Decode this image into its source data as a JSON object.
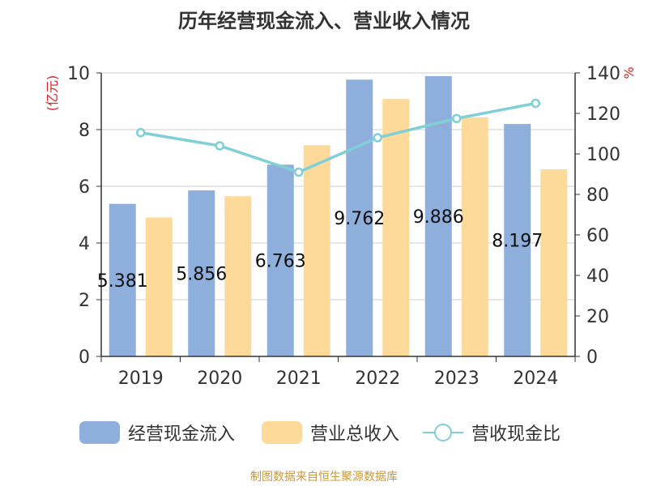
{
  "title": "历年经营现金流入、营业收入情况",
  "source": "制图数据来自恒生聚源数据库",
  "chart_data": {
    "type": "bar",
    "categories": [
      "2019",
      "2020",
      "2021",
      "2022",
      "2023",
      "2024"
    ],
    "y_left": {
      "label": "(亿元)",
      "min": 0,
      "max": 10,
      "ticks": [
        "0",
        "2",
        "4",
        "6",
        "8",
        "10"
      ]
    },
    "y_right": {
      "label": "%",
      "min": 0,
      "max": 140,
      "ticks": [
        "0",
        "20",
        "40",
        "60",
        "80",
        "100",
        "120",
        "140"
      ]
    },
    "grid": true,
    "legend_position": "bottom",
    "series": [
      {
        "name": "经营现金流入",
        "type": "bar",
        "axis": "left",
        "color": "#8eaedb",
        "values": [
          5.381,
          5.856,
          6.763,
          9.762,
          9.886,
          8.197
        ],
        "data_labels": [
          "5.381",
          "5.856",
          "6.763",
          "9.762",
          "9.886",
          "8.197"
        ]
      },
      {
        "name": "营业总收入",
        "type": "bar",
        "axis": "left",
        "color": "#fdd99a",
        "values": [
          4.9,
          5.65,
          7.45,
          9.08,
          8.43,
          6.6
        ]
      },
      {
        "name": "营收现金比",
        "type": "line",
        "axis": "right",
        "color": "#80cfd6",
        "values": [
          110.5,
          104,
          91,
          108,
          117.5,
          125
        ]
      }
    ]
  }
}
